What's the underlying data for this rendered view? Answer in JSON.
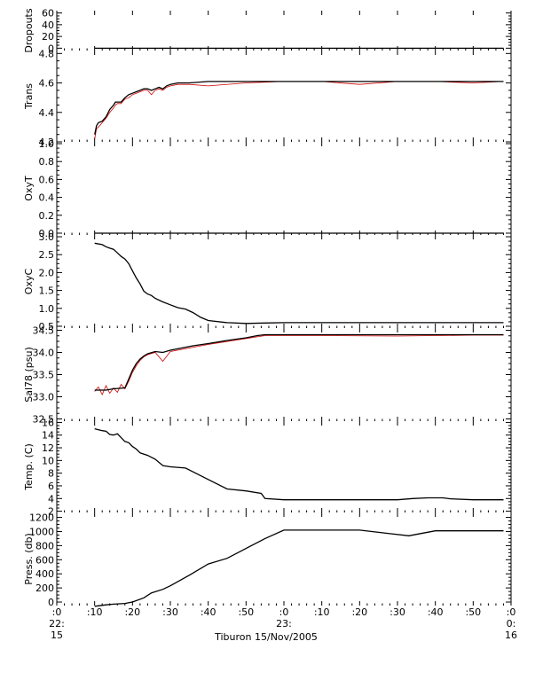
{
  "chart_data": {
    "type": "line",
    "title": "",
    "x_axis": {
      "tick_labels": [
        ":0\n22:\n15",
        ":10",
        ":20",
        ":30",
        ":40",
        ":50",
        ":0\n23:",
        ":10",
        ":20",
        ":30",
        ":40",
        ":50",
        ":0\n0:\n16"
      ],
      "xlabel": "Tiburon 15/Nov/2005",
      "range_minutes": [
        0,
        120
      ],
      "minor_ticks_per_major": 5
    },
    "panels": [
      {
        "ylabel": "Dropouts",
        "yticks": [
          0,
          20,
          40,
          60
        ],
        "ylim": [
          -4,
          64
        ],
        "series_black": {
          "x": [
            10,
            50,
            93.5,
            118
          ],
          "y": [
            0,
            0,
            0,
            0
          ]
        }
      },
      {
        "ylabel": "Trans",
        "yticks": [
          4.2,
          4.4,
          4.6,
          4.8
        ],
        "ylim": [
          4.2,
          4.82
        ],
        "series_black": {
          "x": [
            10,
            10.5,
            11,
            12,
            13,
            14,
            15,
            15.5,
            16,
            17,
            18,
            19,
            20,
            21,
            22,
            23,
            24,
            25,
            26,
            27,
            28,
            29,
            30,
            32,
            35,
            40,
            50,
            60,
            70,
            80,
            90,
            100,
            110,
            118
          ],
          "y": [
            4.25,
            4.31,
            4.33,
            4.34,
            4.37,
            4.42,
            4.45,
            4.47,
            4.47,
            4.47,
            4.5,
            4.52,
            4.53,
            4.54,
            4.55,
            4.56,
            4.56,
            4.55,
            4.56,
            4.57,
            4.56,
            4.58,
            4.59,
            4.6,
            4.6,
            4.61,
            4.61,
            4.61,
            4.61,
            4.61,
            4.61,
            4.61,
            4.61,
            4.61
          ]
        },
        "series_red": {
          "x": [
            10,
            10.5,
            11,
            12,
            13,
            14,
            15,
            15.5,
            16,
            17,
            18,
            19,
            20,
            21,
            22,
            23,
            24,
            25,
            26,
            27,
            28,
            29,
            30,
            32,
            35,
            40,
            50,
            60,
            70,
            80,
            90,
            100,
            110,
            118
          ],
          "y": [
            4.22,
            4.29,
            4.3,
            4.33,
            4.36,
            4.4,
            4.43,
            4.45,
            4.46,
            4.46,
            4.49,
            4.5,
            4.52,
            4.53,
            4.54,
            4.55,
            4.55,
            4.52,
            4.55,
            4.56,
            4.55,
            4.57,
            4.58,
            4.59,
            4.59,
            4.58,
            4.6,
            4.61,
            4.61,
            4.59,
            4.61,
            4.61,
            4.6,
            4.61
          ]
        }
      },
      {
        "ylabel": "OxyT",
        "yticks": [
          0.0,
          0.2,
          0.4,
          0.6,
          0.8,
          1.0
        ],
        "ylim": [
          -0.02,
          1.02
        ],
        "series_black": {
          "x": [
            10,
            118
          ],
          "y": [
            0,
            0
          ]
        }
      },
      {
        "ylabel": "OxyC",
        "yticks": [
          0.5,
          1.0,
          1.5,
          2.0,
          2.5,
          3.0
        ],
        "ylim": [
          0.45,
          3.05
        ],
        "series_black": {
          "x": [
            10,
            12,
            13,
            14,
            15,
            16,
            17,
            18,
            19,
            20,
            21,
            22,
            23,
            24,
            25,
            26,
            28,
            30,
            32,
            34,
            36,
            38,
            40,
            45,
            50,
            55,
            60,
            70,
            80,
            90,
            100,
            110,
            118
          ],
          "y": [
            2.82,
            2.78,
            2.72,
            2.68,
            2.65,
            2.55,
            2.45,
            2.38,
            2.25,
            2.05,
            1.85,
            1.68,
            1.48,
            1.4,
            1.36,
            1.28,
            1.18,
            1.1,
            1.02,
            0.98,
            0.88,
            0.75,
            0.66,
            0.6,
            0.58,
            0.59,
            0.6,
            0.6,
            0.6,
            0.6,
            0.6,
            0.6,
            0.6
          ]
        }
      },
      {
        "ylabel": "Sal78 (psu)",
        "yticks": [
          32.5,
          33.0,
          33.5,
          34.0,
          34.5
        ],
        "ylim": [
          32.45,
          34.55
        ],
        "series_black": {
          "x": [
            10,
            13,
            15,
            18,
            19,
            20,
            21,
            22,
            23,
            24,
            26,
            28,
            30,
            33,
            36,
            40,
            45,
            50,
            53,
            55,
            60,
            70,
            80,
            88,
            90,
            92,
            100,
            110,
            118
          ],
          "y": [
            33.15,
            33.15,
            33.18,
            33.2,
            33.4,
            33.6,
            33.75,
            33.85,
            33.92,
            33.97,
            34.02,
            34.0,
            34.05,
            34.1,
            34.15,
            34.2,
            34.27,
            34.33,
            34.38,
            34.4,
            34.4,
            34.4,
            34.4,
            34.4,
            34.4,
            34.4,
            34.4,
            34.4,
            34.4
          ]
        },
        "series_red": {
          "x": [
            10,
            11,
            12,
            13,
            14,
            15,
            16,
            17,
            18,
            19,
            20,
            21,
            22,
            23,
            24,
            26,
            28,
            30,
            40,
            55,
            70,
            90,
            100,
            110,
            118
          ],
          "y": [
            33.12,
            33.22,
            33.05,
            33.25,
            33.08,
            33.2,
            33.1,
            33.28,
            33.18,
            33.35,
            33.55,
            33.7,
            33.82,
            33.9,
            33.95,
            34.0,
            33.8,
            34.02,
            34.18,
            34.38,
            34.38,
            34.37,
            34.38,
            34.39,
            34.39
          ]
        }
      },
      {
        "ylabel": "Temp. (C)",
        "yticks": [
          2,
          4,
          6,
          8,
          10,
          12,
          14,
          16
        ],
        "ylim": [
          1.8,
          16.2
        ],
        "series_black": {
          "x": [
            10,
            12,
            13,
            14,
            15,
            16,
            17,
            18,
            19,
            20,
            21,
            22,
            24,
            26,
            28,
            30,
            34,
            36,
            40,
            45,
            50,
            54,
            55,
            60,
            70,
            80,
            90,
            94,
            98,
            100,
            102,
            104,
            110,
            118
          ],
          "y": [
            15,
            14.7,
            14.6,
            14.1,
            14.0,
            14.2,
            13.6,
            13.0,
            12.8,
            12.2,
            11.8,
            11.2,
            10.8,
            10.2,
            9.2,
            9.0,
            8.8,
            8.2,
            7.0,
            5.5,
            5.2,
            4.8,
            4.0,
            3.8,
            3.8,
            3.8,
            3.8,
            4.0,
            4.1,
            4.1,
            4.1,
            3.95,
            3.8,
            3.8
          ]
        }
      },
      {
        "ylabel": "Press. (db)",
        "yticks": [
          0,
          200,
          400,
          600,
          800,
          1000,
          1200
        ],
        "ylim": [
          -50,
          1270
        ],
        "series_black": {
          "x": [
            10,
            13,
            15,
            18,
            20,
            23,
            25,
            28,
            30,
            35,
            40,
            45,
            50,
            55,
            60,
            65,
            70,
            76,
            80,
            88,
            93,
            95,
            100,
            102,
            110,
            118
          ],
          "y": [
            -60,
            -40,
            -30,
            -20,
            0,
            60,
            130,
            180,
            230,
            380,
            540,
            620,
            760,
            900,
            1020,
            1020,
            1020,
            1020,
            1020,
            970,
            940,
            960,
            1010,
            1010,
            1010,
            1010
          ]
        }
      }
    ]
  }
}
